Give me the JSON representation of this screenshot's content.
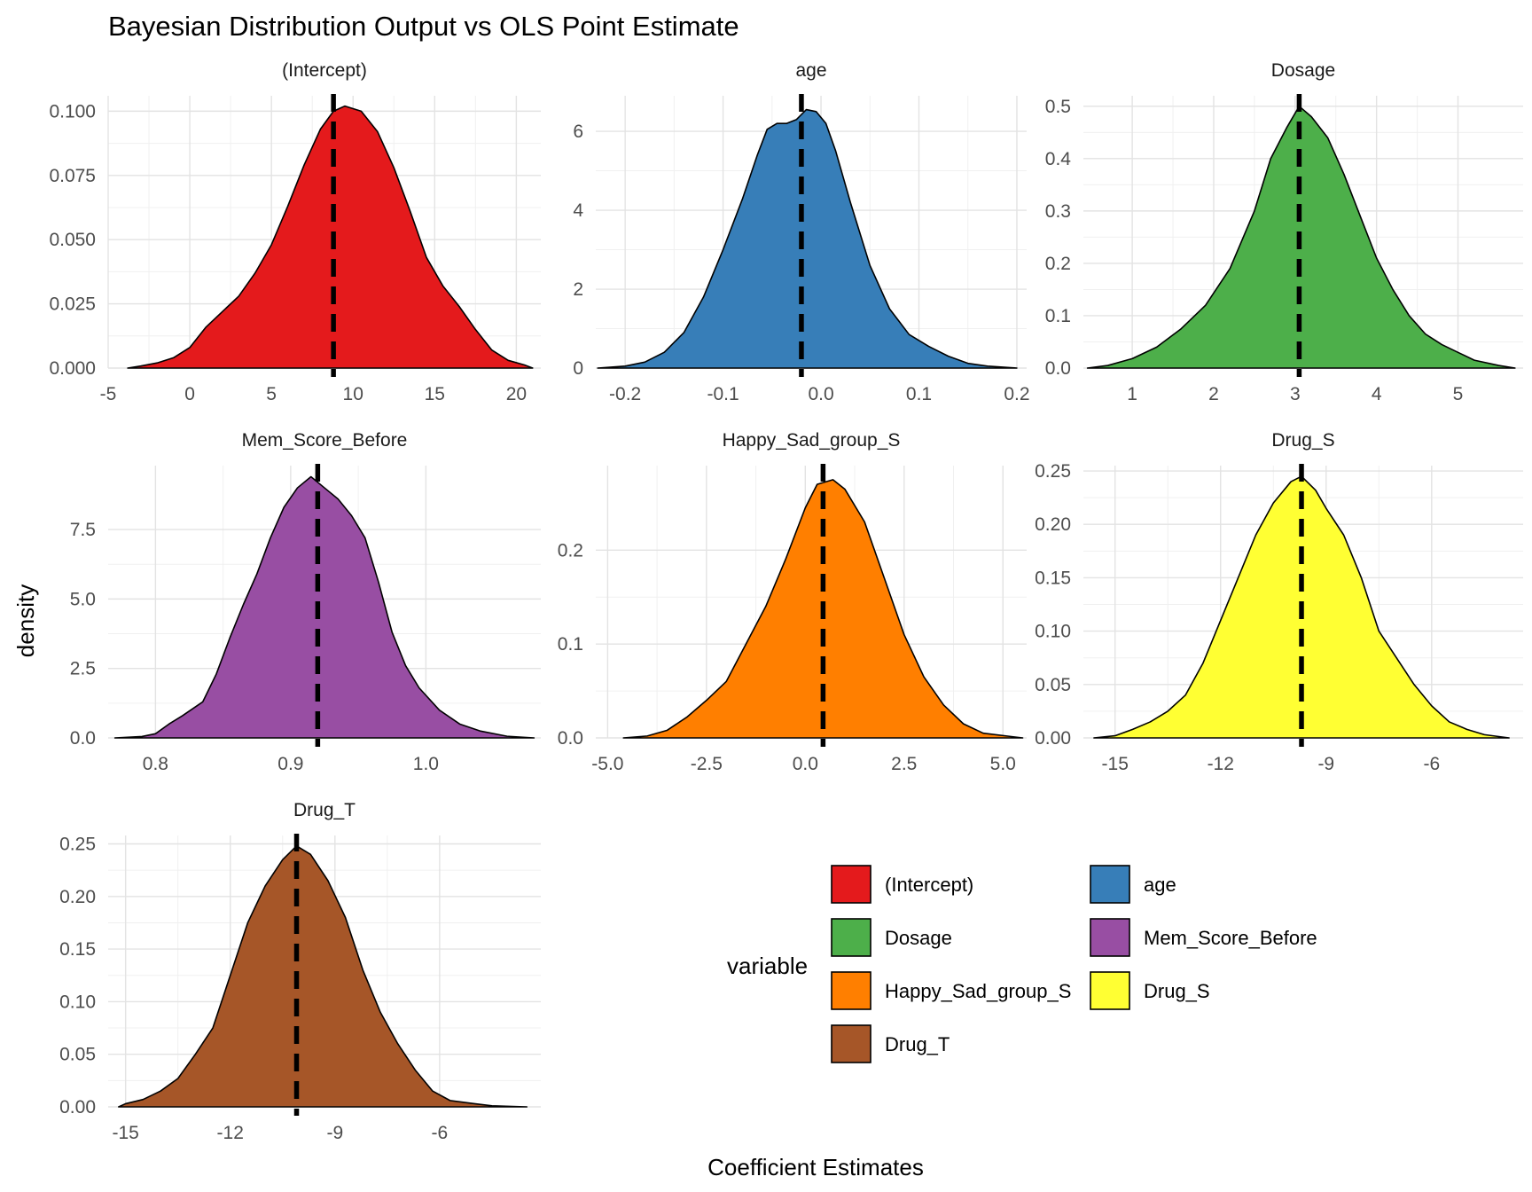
{
  "chart_data": {
    "type": "area",
    "title": "Bayesian Distribution Output vs OLS Point Estimate",
    "xlabel": "Coefficient Estimates",
    "ylabel": "density",
    "grid": true,
    "legend_title": "variable",
    "legend_position": "bottom-right",
    "reference_line_style": "dashed",
    "panels": [
      {
        "name": "(Intercept)",
        "color": "#E41A1C",
        "xlim": [
          -5,
          21.5
        ],
        "ylim": [
          0,
          0.106
        ],
        "xticks": [
          -5,
          0,
          5,
          10,
          15,
          20
        ],
        "yticks": [
          0.0,
          0.025,
          0.05,
          0.075,
          0.1
        ],
        "xtick_labels": [
          "-5",
          "0",
          "5",
          "10",
          "15",
          "20"
        ],
        "ytick_labels": [
          "0.000",
          "0.025",
          "0.050",
          "0.075",
          "0.100"
        ],
        "ols_estimate": 8.8,
        "density": [
          [
            -3.8,
            0
          ],
          [
            -3,
            0.0008
          ],
          [
            -2,
            0.002
          ],
          [
            -1,
            0.004
          ],
          [
            0,
            0.008
          ],
          [
            0.5,
            0.012
          ],
          [
            1,
            0.016
          ],
          [
            2,
            0.022
          ],
          [
            3,
            0.028
          ],
          [
            4,
            0.037
          ],
          [
            5,
            0.048
          ],
          [
            6,
            0.063
          ],
          [
            7,
            0.079
          ],
          [
            8,
            0.093
          ],
          [
            8.8,
            0.1
          ],
          [
            9.5,
            0.102
          ],
          [
            10.5,
            0.1
          ],
          [
            11.5,
            0.092
          ],
          [
            12.5,
            0.078
          ],
          [
            13.5,
            0.061
          ],
          [
            14.5,
            0.043
          ],
          [
            15.5,
            0.032
          ],
          [
            16.5,
            0.024
          ],
          [
            17.5,
            0.015
          ],
          [
            18.5,
            0.007
          ],
          [
            19.5,
            0.003
          ],
          [
            20.5,
            0.0012
          ],
          [
            21,
            0
          ]
        ]
      },
      {
        "name": "age",
        "color": "#377EB8",
        "xlim": [
          -0.23,
          0.21
        ],
        "ylim": [
          0,
          6.9
        ],
        "xticks": [
          -0.2,
          -0.1,
          0.0,
          0.1,
          0.2
        ],
        "yticks": [
          0,
          2,
          4,
          6
        ],
        "xtick_labels": [
          "-0.2",
          "-0.1",
          "0.0",
          "0.1",
          "0.2"
        ],
        "ytick_labels": [
          "0",
          "2",
          "4",
          "6"
        ],
        "ols_estimate": -0.02,
        "density": [
          [
            -0.228,
            0
          ],
          [
            -0.2,
            0.05
          ],
          [
            -0.18,
            0.15
          ],
          [
            -0.16,
            0.4
          ],
          [
            -0.14,
            0.9
          ],
          [
            -0.12,
            1.8
          ],
          [
            -0.1,
            3.0
          ],
          [
            -0.08,
            4.3
          ],
          [
            -0.065,
            5.4
          ],
          [
            -0.055,
            6.05
          ],
          [
            -0.045,
            6.2
          ],
          [
            -0.035,
            6.2
          ],
          [
            -0.025,
            6.3
          ],
          [
            -0.015,
            6.55
          ],
          [
            -0.005,
            6.5
          ],
          [
            0.005,
            6.2
          ],
          [
            0.015,
            5.5
          ],
          [
            0.03,
            4.2
          ],
          [
            0.05,
            2.6
          ],
          [
            0.07,
            1.5
          ],
          [
            0.09,
            0.85
          ],
          [
            0.11,
            0.55
          ],
          [
            0.13,
            0.3
          ],
          [
            0.15,
            0.12
          ],
          [
            0.17,
            0.05
          ],
          [
            0.2,
            0
          ]
        ]
      },
      {
        "name": "Dosage",
        "color": "#4DAF4A",
        "xlim": [
          0.4,
          5.8
        ],
        "ylim": [
          0,
          0.52
        ],
        "xticks": [
          1,
          2,
          3,
          4,
          5
        ],
        "yticks": [
          0.0,
          0.1,
          0.2,
          0.3,
          0.4,
          0.5
        ],
        "xtick_labels": [
          "1",
          "2",
          "3",
          "4",
          "5"
        ],
        "ytick_labels": [
          "0.0",
          "0.1",
          "0.2",
          "0.3",
          "0.4",
          "0.5"
        ],
        "ols_estimate": 3.05,
        "density": [
          [
            0.45,
            0
          ],
          [
            0.7,
            0.005
          ],
          [
            1.0,
            0.018
          ],
          [
            1.3,
            0.04
          ],
          [
            1.6,
            0.075
          ],
          [
            1.9,
            0.12
          ],
          [
            2.2,
            0.19
          ],
          [
            2.5,
            0.3
          ],
          [
            2.7,
            0.4
          ],
          [
            2.9,
            0.46
          ],
          [
            3.05,
            0.5
          ],
          [
            3.2,
            0.48
          ],
          [
            3.4,
            0.44
          ],
          [
            3.6,
            0.37
          ],
          [
            3.8,
            0.29
          ],
          [
            4.0,
            0.21
          ],
          [
            4.2,
            0.15
          ],
          [
            4.4,
            0.1
          ],
          [
            4.6,
            0.065
          ],
          [
            4.8,
            0.045
          ],
          [
            5.0,
            0.03
          ],
          [
            5.2,
            0.015
          ],
          [
            5.5,
            0.005
          ],
          [
            5.7,
            0
          ]
        ]
      },
      {
        "name": "Mem_Score_Before",
        "color": "#984EA3",
        "xlim": [
          0.765,
          1.085
        ],
        "ylim": [
          0,
          9.8
        ],
        "xticks": [
          0.8,
          0.9,
          1.0
        ],
        "yticks": [
          0.0,
          2.5,
          5.0,
          7.5
        ],
        "xtick_labels": [
          "0.8",
          "0.9",
          "1.0"
        ],
        "ytick_labels": [
          "0.0",
          "2.5",
          "5.0",
          "7.5"
        ],
        "ols_estimate": 0.92,
        "density": [
          [
            0.77,
            0
          ],
          [
            0.79,
            0.05
          ],
          [
            0.8,
            0.15
          ],
          [
            0.81,
            0.5
          ],
          [
            0.82,
            0.8
          ],
          [
            0.835,
            1.3
          ],
          [
            0.845,
            2.3
          ],
          [
            0.855,
            3.6
          ],
          [
            0.865,
            4.8
          ],
          [
            0.875,
            5.9
          ],
          [
            0.885,
            7.2
          ],
          [
            0.895,
            8.3
          ],
          [
            0.905,
            9.0
          ],
          [
            0.915,
            9.4
          ],
          [
            0.925,
            9.0
          ],
          [
            0.935,
            8.6
          ],
          [
            0.945,
            8.0
          ],
          [
            0.955,
            7.2
          ],
          [
            0.965,
            5.6
          ],
          [
            0.975,
            3.8
          ],
          [
            0.985,
            2.6
          ],
          [
            0.995,
            1.8
          ],
          [
            1.01,
            1.0
          ],
          [
            1.025,
            0.5
          ],
          [
            1.04,
            0.25
          ],
          [
            1.06,
            0.06
          ],
          [
            1.08,
            0
          ]
        ]
      },
      {
        "name": "Happy_Sad_group_S",
        "color": "#FF7F00",
        "xlim": [
          -5.3,
          5.6
        ],
        "ylim": [
          0,
          0.29
        ],
        "xticks": [
          -5.0,
          -2.5,
          0.0,
          2.5,
          5.0
        ],
        "yticks": [
          0.0,
          0.1,
          0.2
        ],
        "xtick_labels": [
          "-5.0",
          "-2.5",
          "0.0",
          "2.5",
          "5.0"
        ],
        "ytick_labels": [
          "0.0",
          "0.1",
          "0.2"
        ],
        "ols_estimate": 0.45,
        "density": [
          [
            -4.6,
            0
          ],
          [
            -4,
            0.002
          ],
          [
            -3.5,
            0.008
          ],
          [
            -3,
            0.022
          ],
          [
            -2.5,
            0.04
          ],
          [
            -2,
            0.06
          ],
          [
            -1.5,
            0.1
          ],
          [
            -1,
            0.14
          ],
          [
            -0.5,
            0.19
          ],
          [
            0,
            0.245
          ],
          [
            0.3,
            0.27
          ],
          [
            0.7,
            0.275
          ],
          [
            1.0,
            0.265
          ],
          [
            1.5,
            0.23
          ],
          [
            2,
            0.17
          ],
          [
            2.5,
            0.11
          ],
          [
            3,
            0.065
          ],
          [
            3.5,
            0.035
          ],
          [
            4,
            0.015
          ],
          [
            4.5,
            0.005
          ],
          [
            5.5,
            0
          ]
        ]
      },
      {
        "name": "Drug_S",
        "color": "#FFFF33",
        "xlim": [
          -15.9,
          -3.4
        ],
        "ylim": [
          0,
          0.255
        ],
        "xticks": [
          -15,
          -12,
          -9,
          -6
        ],
        "yticks": [
          0.0,
          0.05,
          0.1,
          0.15,
          0.2,
          0.25
        ],
        "xtick_labels": [
          "-15",
          "-12",
          "-9",
          "-6"
        ],
        "ytick_labels": [
          "0.00",
          "0.05",
          "0.10",
          "0.15",
          "0.20",
          "0.25"
        ],
        "ols_estimate": -9.7,
        "density": [
          [
            -15.6,
            0
          ],
          [
            -15,
            0.002
          ],
          [
            -14.5,
            0.008
          ],
          [
            -14,
            0.015
          ],
          [
            -13.5,
            0.025
          ],
          [
            -13,
            0.04
          ],
          [
            -12.5,
            0.07
          ],
          [
            -12,
            0.11
          ],
          [
            -11.5,
            0.15
          ],
          [
            -11,
            0.19
          ],
          [
            -10.5,
            0.22
          ],
          [
            -10,
            0.24
          ],
          [
            -9.7,
            0.245
          ],
          [
            -9.3,
            0.232
          ],
          [
            -9,
            0.215
          ],
          [
            -8.5,
            0.19
          ],
          [
            -8,
            0.15
          ],
          [
            -7.5,
            0.1
          ],
          [
            -7,
            0.075
          ],
          [
            -6.5,
            0.05
          ],
          [
            -6,
            0.03
          ],
          [
            -5.5,
            0.015
          ],
          [
            -5,
            0.008
          ],
          [
            -4.5,
            0.003
          ],
          [
            -3.8,
            0
          ]
        ]
      },
      {
        "name": "Drug_T",
        "color": "#A65628",
        "xlim": [
          -15.5,
          -3.1
        ],
        "ylim": [
          0,
          0.258
        ],
        "xticks": [
          -15,
          -12,
          -9,
          -6
        ],
        "yticks": [
          0.0,
          0.05,
          0.1,
          0.15,
          0.2,
          0.25
        ],
        "xtick_labels": [
          "-15",
          "-12",
          "-9",
          "-6"
        ],
        "ytick_labels": [
          "0.00",
          "0.05",
          "0.10",
          "0.15",
          "0.20",
          "0.25"
        ],
        "ols_estimate": -10.1,
        "density": [
          [
            -15.2,
            0
          ],
          [
            -15,
            0.003
          ],
          [
            -14.5,
            0.007
          ],
          [
            -14,
            0.015
          ],
          [
            -13.5,
            0.027
          ],
          [
            -13,
            0.05
          ],
          [
            -12.5,
            0.075
          ],
          [
            -12,
            0.125
          ],
          [
            -11.5,
            0.175
          ],
          [
            -11,
            0.21
          ],
          [
            -10.5,
            0.235
          ],
          [
            -10.1,
            0.248
          ],
          [
            -9.7,
            0.24
          ],
          [
            -9.2,
            0.215
          ],
          [
            -8.7,
            0.18
          ],
          [
            -8.2,
            0.13
          ],
          [
            -7.7,
            0.09
          ],
          [
            -7.2,
            0.06
          ],
          [
            -6.7,
            0.035
          ],
          [
            -6.2,
            0.015
          ],
          [
            -5.7,
            0.006
          ],
          [
            -5,
            0.003
          ],
          [
            -4.5,
            0.001
          ],
          [
            -3.5,
            0
          ]
        ]
      }
    ]
  }
}
